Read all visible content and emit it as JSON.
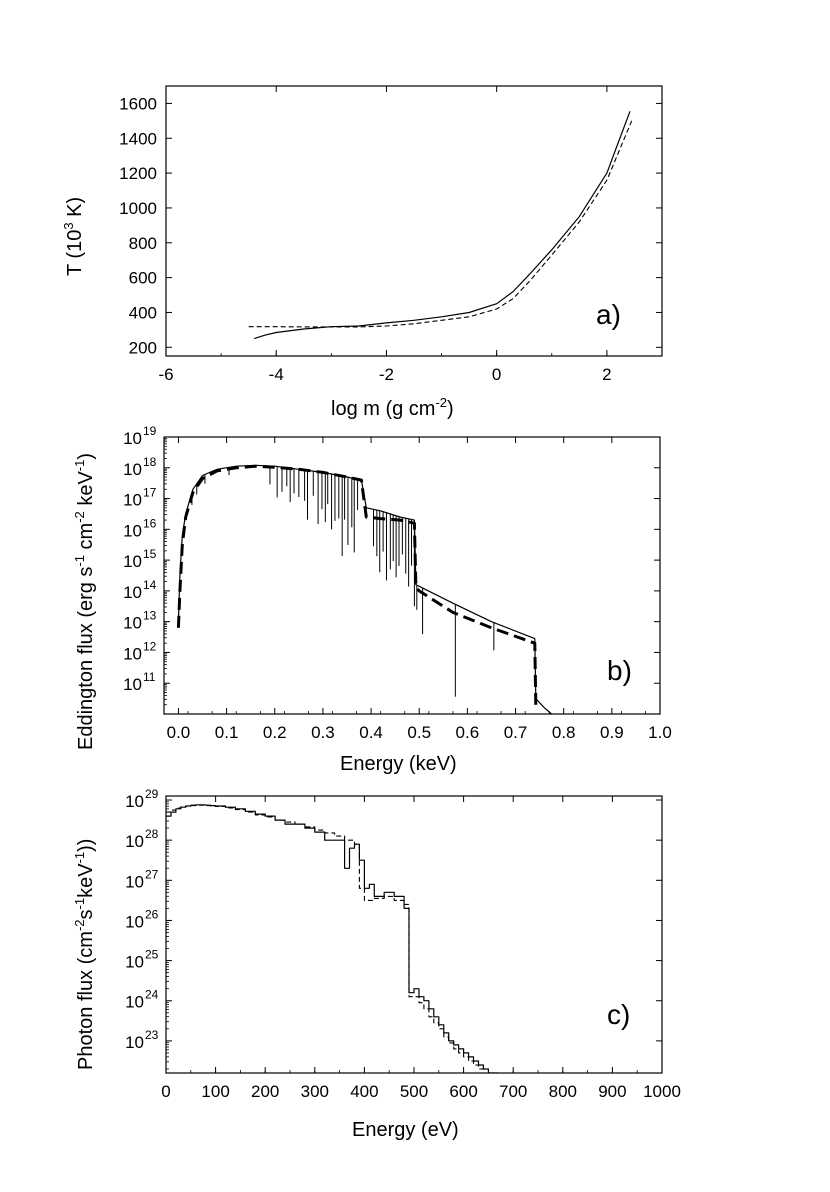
{
  "chart_data": [
    {
      "id": "a",
      "type": "line",
      "panel_label": "a)",
      "xlabel": "log m  (g cm",
      "xlabel_sup": "-2",
      "xlabel_tail": ")",
      "ylabel": "T (10",
      "ylabel_sup": "3",
      "ylabel_tail": " K)",
      "xlim": [
        -6,
        3
      ],
      "ylim": [
        150,
        1700
      ],
      "xticks": [
        -6,
        -4,
        -2,
        0,
        2
      ],
      "yticks": [
        200,
        400,
        600,
        800,
        1000,
        1200,
        1400,
        1600
      ],
      "series": [
        {
          "name": "solid",
          "style": "solid",
          "x": [
            -4.4,
            -4.2,
            -4.0,
            -3.5,
            -3.0,
            -2.5,
            -2.0,
            -1.5,
            -1.0,
            -0.5,
            0.0,
            0.3,
            0.6,
            1.0,
            1.5,
            2.0,
            2.2,
            2.42
          ],
          "y": [
            250,
            270,
            285,
            305,
            318,
            322,
            340,
            355,
            375,
            400,
            450,
            520,
            620,
            760,
            950,
            1200,
            1370,
            1555
          ]
        },
        {
          "name": "dashed",
          "style": "dashed",
          "x": [
            -4.5,
            -4.0,
            -3.5,
            -3.0,
            -2.5,
            -2.0,
            -1.5,
            -1.0,
            -0.5,
            0.0,
            0.3,
            0.6,
            1.0,
            1.5,
            2.0,
            2.2,
            2.45
          ],
          "y": [
            318,
            318,
            317,
            317,
            317,
            322,
            335,
            355,
            375,
            420,
            480,
            580,
            730,
            920,
            1160,
            1310,
            1500
          ]
        }
      ]
    },
    {
      "id": "b",
      "type": "line",
      "yscale": "log",
      "panel_label": "b)",
      "xlabel": "Energy  (keV)",
      "ylabel": "Eddington flux (erg s",
      "ylabel_parts": [
        {
          "t": "Eddington flux (erg s"
        },
        {
          "t": "-1",
          "sup": true
        },
        {
          "t": " cm"
        },
        {
          "t": "-2",
          "sup": true
        },
        {
          "t": " keV"
        },
        {
          "t": "-1",
          "sup": true
        },
        {
          "t": ")"
        }
      ],
      "xlim": [
        -0.03,
        1.0
      ],
      "ylim_exp": [
        10,
        19
      ],
      "xticks": [
        0.0,
        0.1,
        0.2,
        0.3,
        0.4,
        0.5,
        0.6,
        0.7,
        0.8,
        0.9,
        1.0
      ],
      "xtick_labels": [
        "0.0",
        "0.1",
        "0.2",
        "0.3",
        "0.4",
        "0.5",
        "0.6",
        "0.7",
        "0.8",
        "0.9",
        "1.0"
      ],
      "ytick_exps": [
        11,
        12,
        13,
        14,
        15,
        16,
        17,
        18,
        19
      ],
      "series": [
        {
          "name": "solid (continuum)",
          "style": "solid",
          "x": [
            0.0,
            0.003,
            0.008,
            0.015,
            0.03,
            0.05,
            0.08,
            0.12,
            0.16,
            0.2,
            0.25,
            0.3,
            0.35,
            0.38,
            0.39,
            0.42,
            0.46,
            0.49,
            0.493,
            0.5,
            0.57,
            0.65,
            0.74,
            0.742,
            0.76,
            0.79
          ],
          "log_y": [
            13.0,
            14.5,
            15.8,
            16.5,
            17.3,
            17.75,
            17.95,
            18.05,
            18.08,
            18.05,
            17.95,
            17.85,
            17.7,
            17.6,
            16.7,
            16.6,
            16.4,
            16.3,
            14.2,
            14.15,
            13.6,
            13.0,
            12.45,
            10.5,
            10.2,
            9.8
          ]
        },
        {
          "name": "dashed (thick)",
          "style": "thick-dashed",
          "x": [
            0.0,
            0.003,
            0.008,
            0.015,
            0.03,
            0.05,
            0.08,
            0.12,
            0.16,
            0.2,
            0.25,
            0.3,
            0.35,
            0.38,
            0.39,
            0.42,
            0.46,
            0.49,
            0.493,
            0.5,
            0.57,
            0.65,
            0.74,
            0.742
          ],
          "log_y": [
            12.8,
            14.0,
            15.5,
            16.4,
            17.2,
            17.65,
            17.9,
            18.0,
            18.05,
            18.02,
            17.95,
            17.85,
            17.7,
            17.6,
            16.4,
            16.35,
            16.3,
            16.2,
            14.1,
            14.0,
            13.3,
            12.8,
            12.3,
            10.3
          ]
        }
      ],
      "absorption_lines": [
        {
          "x": 0.028,
          "depth": 0.4
        },
        {
          "x": 0.038,
          "depth": 0.35
        },
        {
          "x": 0.055,
          "depth": 0.3
        },
        {
          "x": 0.105,
          "depth": 0.25
        },
        {
          "x": 0.19,
          "depth": 0.6
        },
        {
          "x": 0.205,
          "depth": 1.0
        },
        {
          "x": 0.215,
          "depth": 0.8
        },
        {
          "x": 0.225,
          "depth": 0.6
        },
        {
          "x": 0.232,
          "depth": 1.1
        },
        {
          "x": 0.24,
          "depth": 0.8
        },
        {
          "x": 0.25,
          "depth": 0.9
        },
        {
          "x": 0.262,
          "depth": 1.0
        },
        {
          "x": 0.268,
          "depth": 1.6
        },
        {
          "x": 0.28,
          "depth": 0.8
        },
        {
          "x": 0.29,
          "depth": 1.7
        },
        {
          "x": 0.298,
          "depth": 1.2
        },
        {
          "x": 0.305,
          "depth": 1.6
        },
        {
          "x": 0.31,
          "depth": 1.0
        },
        {
          "x": 0.318,
          "depth": 1.8
        },
        {
          "x": 0.325,
          "depth": 1.5
        },
        {
          "x": 0.333,
          "depth": 1.4
        },
        {
          "x": 0.34,
          "depth": 2.6
        },
        {
          "x": 0.345,
          "depth": 1.4
        },
        {
          "x": 0.352,
          "depth": 2.2
        },
        {
          "x": 0.36,
          "depth": 1.6
        },
        {
          "x": 0.365,
          "depth": 2.4
        },
        {
          "x": 0.372,
          "depth": 1.0
        },
        {
          "x": 0.405,
          "depth": 1.2
        },
        {
          "x": 0.412,
          "depth": 1.5
        },
        {
          "x": 0.418,
          "depth": 2.0
        },
        {
          "x": 0.425,
          "depth": 1.3
        },
        {
          "x": 0.432,
          "depth": 2.2
        },
        {
          "x": 0.44,
          "depth": 1.8
        },
        {
          "x": 0.446,
          "depth": 1.5
        },
        {
          "x": 0.452,
          "depth": 2.0
        },
        {
          "x": 0.458,
          "depth": 1.6
        },
        {
          "x": 0.465,
          "depth": 1.2
        },
        {
          "x": 0.472,
          "depth": 1.8
        },
        {
          "x": 0.478,
          "depth": 2.2
        },
        {
          "x": 0.484,
          "depth": 1.5
        },
        {
          "x": 0.49,
          "depth": 2.8
        },
        {
          "x": 0.495,
          "depth": 0.8
        },
        {
          "x": 0.507,
          "depth": 1.5
        },
        {
          "x": 0.575,
          "depth": 3.0
        },
        {
          "x": 0.655,
          "depth": 0.9
        }
      ]
    },
    {
      "id": "c",
      "type": "line",
      "step": true,
      "yscale": "log",
      "panel_label": "c)",
      "xlabel": "Energy (eV)",
      "ylabel_parts": [
        {
          "t": "Photon flux (cm"
        },
        {
          "t": "-2",
          "sup": true
        },
        {
          "t": "s"
        },
        {
          "t": "-1",
          "sup": true
        },
        {
          "t": "keV"
        },
        {
          "t": "-1",
          "sup": true
        },
        {
          "t": "))"
        }
      ],
      "xlim": [
        0,
        1000
      ],
      "ylim_exp": [
        22.2,
        29.1
      ],
      "xticks": [
        0,
        100,
        200,
        300,
        400,
        500,
        600,
        700,
        800,
        900,
        1000
      ],
      "ytick_exps": [
        23,
        24,
        25,
        26,
        27,
        28,
        29
      ],
      "series": [
        {
          "name": "solid (histogram)",
          "style": "solid",
          "x": [
            0,
            10,
            20,
            30,
            40,
            50,
            60,
            70,
            80,
            90,
            100,
            120,
            140,
            160,
            180,
            200,
            220,
            240,
            260,
            280,
            300,
            320,
            340,
            360,
            370,
            380,
            390,
            400,
            410,
            420,
            440,
            460,
            480,
            490,
            500,
            510,
            520,
            530,
            540,
            550,
            560,
            570,
            580,
            590,
            600,
            610,
            620,
            630,
            640,
            650,
            660,
            670
          ],
          "log_y": [
            28.6,
            28.7,
            28.78,
            28.82,
            28.85,
            28.87,
            28.88,
            28.88,
            28.87,
            28.86,
            28.85,
            28.82,
            28.78,
            28.72,
            28.65,
            28.6,
            28.5,
            28.4,
            28.4,
            28.3,
            28.2,
            28.0,
            28.0,
            27.3,
            27.8,
            27.9,
            27.5,
            26.8,
            26.9,
            26.6,
            26.7,
            26.6,
            26.3,
            24.2,
            24.3,
            24.1,
            24.0,
            23.8,
            23.6,
            23.4,
            23.2,
            23.0,
            22.9,
            22.8,
            22.7,
            22.6,
            22.5,
            22.4,
            22.3,
            22.2,
            22.2,
            22.2
          ]
        },
        {
          "name": "dashed",
          "style": "dashed",
          "x": [
            0,
            10,
            20,
            30,
            40,
            50,
            60,
            70,
            80,
            90,
            100,
            120,
            140,
            160,
            180,
            200,
            220,
            240,
            260,
            280,
            300,
            320,
            340,
            360,
            380,
            390,
            400,
            410,
            420,
            440,
            460,
            480,
            490,
            500,
            510,
            520,
            530,
            540,
            550,
            560,
            570,
            580,
            590,
            600,
            610,
            620,
            630,
            640,
            650,
            660,
            670
          ],
          "log_y": [
            28.7,
            28.75,
            28.8,
            28.83,
            28.85,
            28.86,
            28.87,
            28.87,
            28.86,
            28.85,
            28.84,
            28.8,
            28.76,
            28.7,
            28.63,
            28.58,
            28.5,
            28.45,
            28.4,
            28.33,
            28.25,
            28.18,
            28.1,
            28.0,
            27.9,
            26.8,
            26.5,
            26.5,
            26.55,
            26.6,
            26.5,
            26.4,
            24.1,
            24.1,
            23.95,
            23.8,
            23.6,
            23.45,
            23.3,
            23.1,
            22.95,
            22.8,
            22.7,
            22.6,
            22.5,
            22.4,
            22.3,
            22.2,
            22.2,
            22.2,
            22.2
          ]
        }
      ]
    }
  ]
}
